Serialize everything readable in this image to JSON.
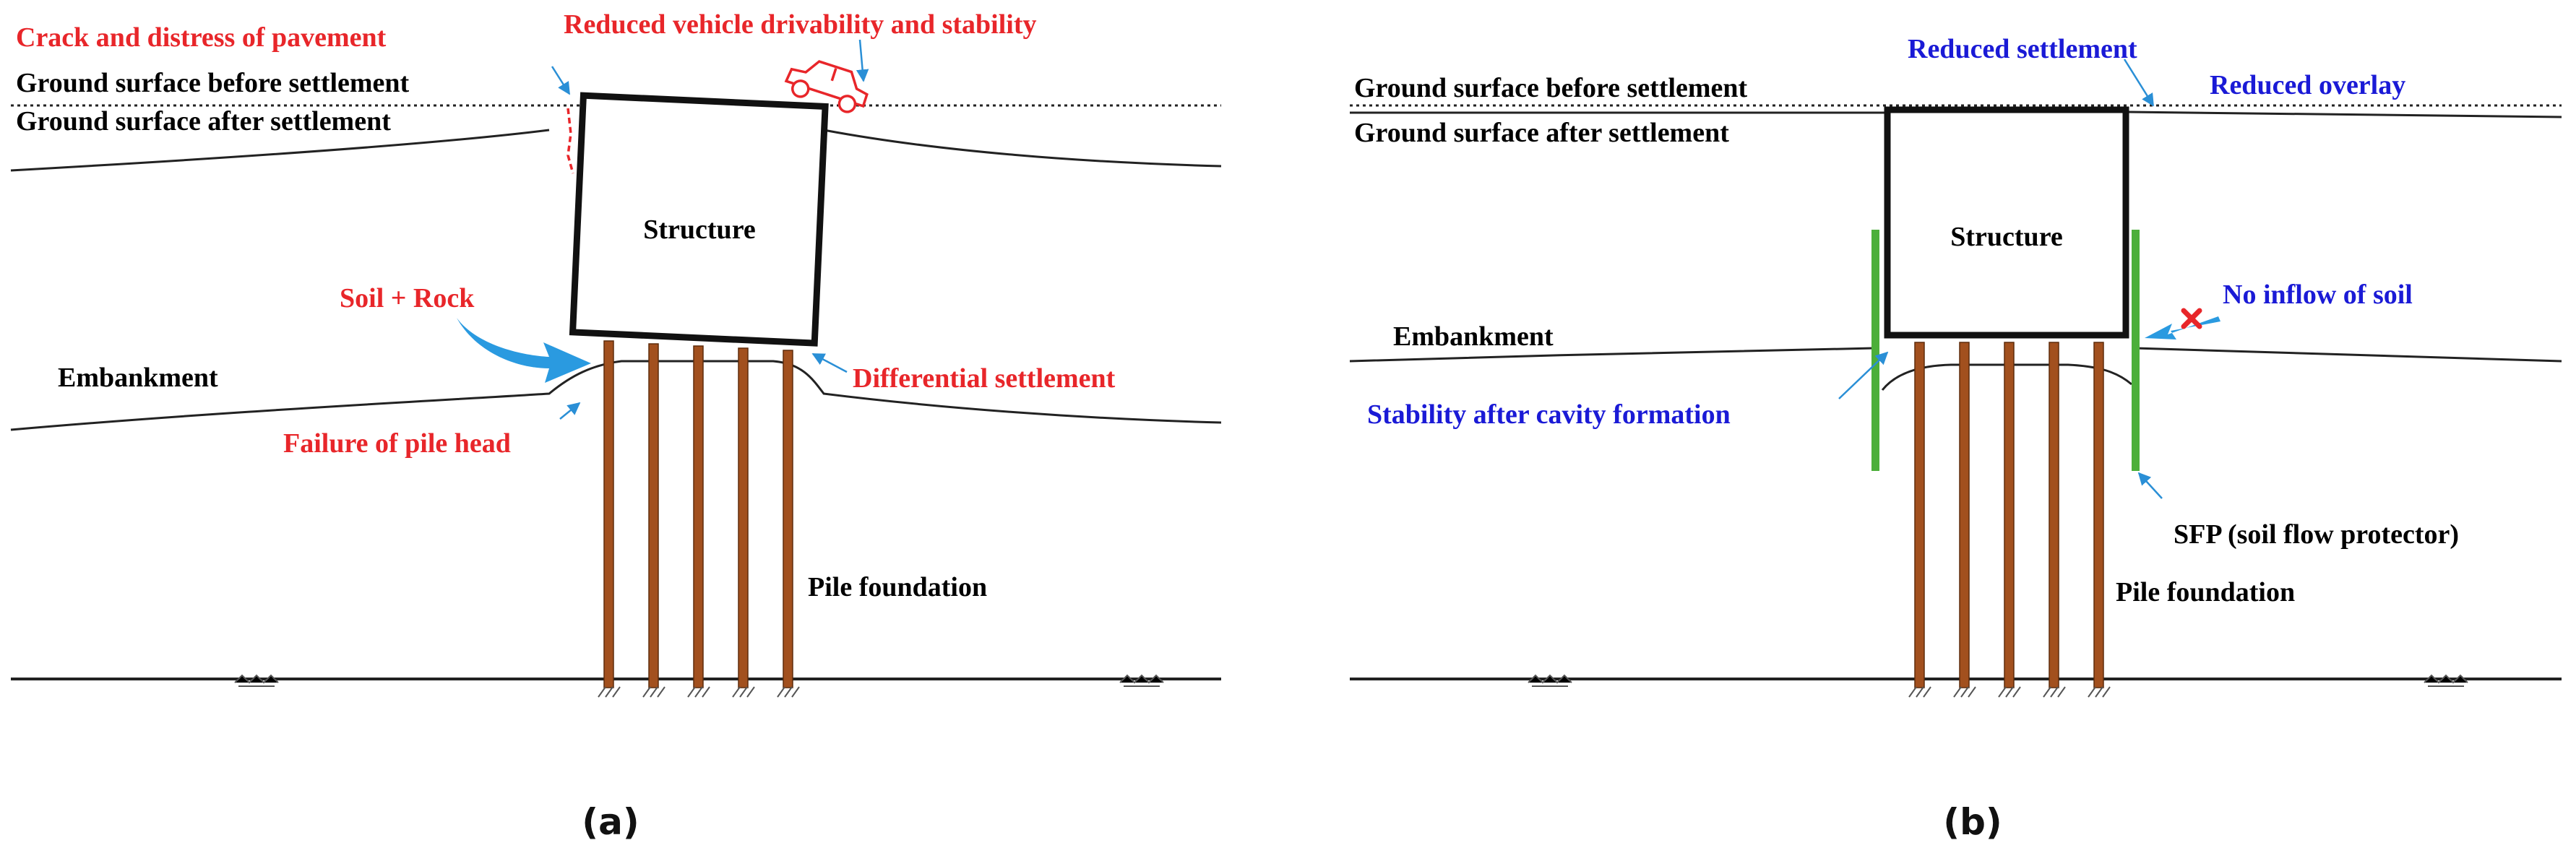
{
  "panel_a": {
    "caption": "(a)",
    "structure": "Structure",
    "labels": {
      "crack": "Crack and distress of pavement",
      "drivability": "Reduced vehicle drivability and stability",
      "ground_before": "Ground surface before settlement",
      "ground_after": "Ground surface after settlement",
      "soil_rock": "Soil + Rock",
      "embankment": "Embankment",
      "differential": "Differential settlement",
      "pile_head": "Failure of pile head",
      "pile_foundation": "Pile foundation"
    }
  },
  "panel_b": {
    "caption": "(b)",
    "structure": "Structure",
    "labels": {
      "reduced_settlement": "Reduced settlement",
      "reduced_overlay": "Reduced overlay",
      "ground_before": "Ground surface before settlement",
      "ground_after": "Ground surface after settlement",
      "no_inflow": "No inflow of soil",
      "embankment": "Embankment",
      "stability": "Stability after cavity formation",
      "sfp": "SFP (soil flow protector)",
      "pile_foundation": "Pile foundation"
    }
  },
  "colors": {
    "red_text": "#e8262a",
    "blue_text": "#1a1ad6",
    "pile": "#a2501e",
    "sfp": "#4caf3a",
    "leader": "#2a8fd6"
  }
}
